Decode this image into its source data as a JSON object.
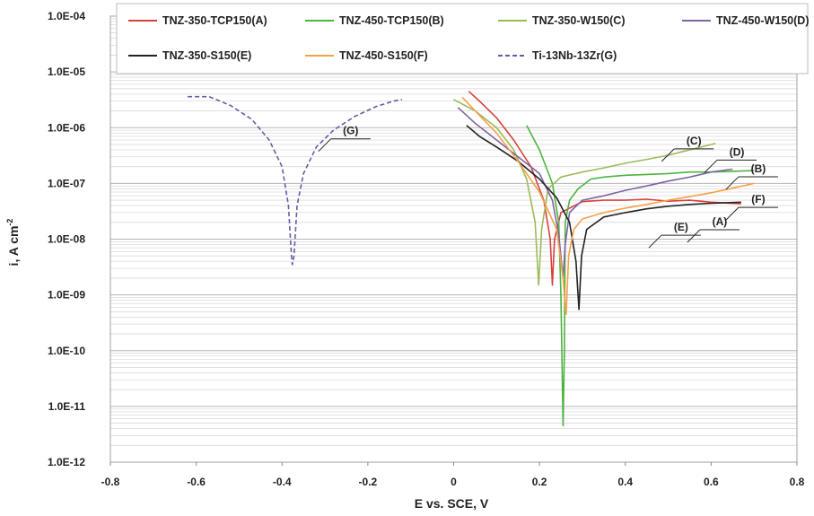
{
  "chart_data": {
    "type": "line",
    "title": "",
    "xlabel": "E vs. SCE, V",
    "ylabel": "i, A cm",
    "ylabel_sup": "-2",
    "xlim": [
      -0.8,
      0.8
    ],
    "ylim_log10": [
      -12,
      -4
    ],
    "y_scale": "log",
    "x_ticks": [
      "-0.8",
      "-0.6",
      "-0.4",
      "-0.2",
      "0",
      "0.2",
      "0.4",
      "0.6",
      "0.8"
    ],
    "x_tick_values": [
      -0.8,
      -0.6,
      -0.4,
      -0.2,
      0,
      0.2,
      0.4,
      0.6,
      0.8
    ],
    "y_ticks": [
      "1.0E-12",
      "1.0E-11",
      "1.0E-10",
      "1.0E-09",
      "1.0E-08",
      "1.0E-07",
      "1.0E-06",
      "1.0E-05",
      "1.0E-04"
    ],
    "y_tick_exps": [
      -12,
      -11,
      -10,
      -9,
      -8,
      -7,
      -6,
      -5,
      -4
    ],
    "grid": "horizontal minor and major",
    "legend_position": "top",
    "series": [
      {
        "name": "TNZ-350-TCP150",
        "tag": "(A)",
        "color": "#d9413b",
        "dash": false,
        "points": [
          [
            0.035,
            4.5e-06
          ],
          [
            0.06,
            3e-06
          ],
          [
            0.1,
            1.5e-06
          ],
          [
            0.14,
            6e-07
          ],
          [
            0.18,
            2e-07
          ],
          [
            0.21,
            5e-08
          ],
          [
            0.225,
            1e-08
          ],
          [
            0.23,
            1.5e-09
          ],
          [
            0.235,
            1e-08
          ],
          [
            0.25,
            3e-08
          ],
          [
            0.3,
            4.7e-08
          ],
          [
            0.35,
            5e-08
          ],
          [
            0.4,
            5e-08
          ],
          [
            0.45,
            5.2e-08
          ],
          [
            0.5,
            4.8e-08
          ],
          [
            0.55,
            5e-08
          ],
          [
            0.6,
            4.6e-08
          ],
          [
            0.67,
            4.3e-08
          ]
        ]
      },
      {
        "name": "TNZ-450-TCP150",
        "tag": "(B)",
        "color": "#4db342",
        "dash": false,
        "points": [
          [
            0.17,
            1.1e-06
          ],
          [
            0.2,
            4e-07
          ],
          [
            0.23,
            1e-07
          ],
          [
            0.245,
            2e-08
          ],
          [
            0.25,
            1e-09
          ],
          [
            0.255,
            4.5e-12
          ],
          [
            0.258,
            1e-10
          ],
          [
            0.26,
            2e-08
          ],
          [
            0.27,
            5e-08
          ],
          [
            0.29,
            8e-08
          ],
          [
            0.32,
            1.2e-07
          ],
          [
            0.35,
            1.3e-07
          ],
          [
            0.4,
            1.4e-07
          ],
          [
            0.45,
            1.45e-07
          ],
          [
            0.5,
            1.5e-07
          ],
          [
            0.55,
            1.6e-07
          ],
          [
            0.6,
            1.6e-07
          ],
          [
            0.65,
            1.65e-07
          ],
          [
            0.7,
            1.7e-07
          ]
        ]
      },
      {
        "name": "TNZ-350-W150",
        "tag": "(C)",
        "color": "#9bbb59",
        "dash": false,
        "points": [
          [
            0.0,
            3.2e-06
          ],
          [
            0.05,
            2e-06
          ],
          [
            0.1,
            1e-06
          ],
          [
            0.14,
            4e-07
          ],
          [
            0.17,
            1.2e-07
          ],
          [
            0.19,
            2e-08
          ],
          [
            0.198,
            1.5e-09
          ],
          [
            0.205,
            1.5e-08
          ],
          [
            0.22,
            8e-08
          ],
          [
            0.25,
            1.3e-07
          ],
          [
            0.3,
            1.6e-07
          ],
          [
            0.35,
            1.9e-07
          ],
          [
            0.4,
            2.3e-07
          ],
          [
            0.45,
            2.7e-07
          ],
          [
            0.5,
            3.2e-07
          ],
          [
            0.55,
            4e-07
          ],
          [
            0.6,
            5e-07
          ],
          [
            0.61,
            5.2e-07
          ]
        ]
      },
      {
        "name": "TNZ-450-W150",
        "tag": "(D)",
        "color": "#8064a2",
        "dash": false,
        "points": [
          [
            0.01,
            2.3e-06
          ],
          [
            0.05,
            1.2e-06
          ],
          [
            0.1,
            6e-07
          ],
          [
            0.15,
            3e-07
          ],
          [
            0.2,
            1.5e-07
          ],
          [
            0.23,
            5e-08
          ],
          [
            0.245,
            1.2e-08
          ],
          [
            0.255,
            2e-09
          ],
          [
            0.26,
            8e-09
          ],
          [
            0.27,
            3e-08
          ],
          [
            0.3,
            5e-08
          ],
          [
            0.35,
            6e-08
          ],
          [
            0.4,
            7.5e-08
          ],
          [
            0.45,
            9e-08
          ],
          [
            0.5,
            1.1e-07
          ],
          [
            0.55,
            1.3e-07
          ],
          [
            0.6,
            1.6e-07
          ],
          [
            0.65,
            1.8e-07
          ]
        ]
      },
      {
        "name": "TNZ-350-S150",
        "tag": "(E)",
        "color": "#222222",
        "dash": false,
        "points": [
          [
            0.03,
            1.1e-06
          ],
          [
            0.06,
            7e-07
          ],
          [
            0.1,
            4.5e-07
          ],
          [
            0.15,
            2.5e-07
          ],
          [
            0.2,
            1.2e-07
          ],
          [
            0.24,
            5.5e-08
          ],
          [
            0.27,
            2e-08
          ],
          [
            0.285,
            4e-09
          ],
          [
            0.292,
            5.5e-10
          ],
          [
            0.298,
            5e-09
          ],
          [
            0.31,
            1.5e-08
          ],
          [
            0.35,
            2.5e-08
          ],
          [
            0.4,
            3e-08
          ],
          [
            0.45,
            3.5e-08
          ],
          [
            0.5,
            3.9e-08
          ],
          [
            0.55,
            4.2e-08
          ],
          [
            0.6,
            4.4e-08
          ],
          [
            0.67,
            4.6e-08
          ]
        ]
      },
      {
        "name": "TNZ-450-S150",
        "tag": "(F)",
        "color": "#f5a04a",
        "dash": false,
        "points": [
          [
            0.02,
            3.5e-06
          ],
          [
            0.05,
            2e-06
          ],
          [
            0.1,
            8e-07
          ],
          [
            0.15,
            2.5e-07
          ],
          [
            0.2,
            7e-08
          ],
          [
            0.24,
            1.5e-08
          ],
          [
            0.255,
            2e-09
          ],
          [
            0.262,
            4.5e-10
          ],
          [
            0.268,
            5e-09
          ],
          [
            0.28,
            1.5e-08
          ],
          [
            0.3,
            2.3e-08
          ],
          [
            0.35,
            3e-08
          ],
          [
            0.4,
            3.6e-08
          ],
          [
            0.45,
            4.2e-08
          ],
          [
            0.5,
            5e-08
          ],
          [
            0.55,
            5.8e-08
          ],
          [
            0.6,
            6.8e-08
          ],
          [
            0.65,
            8.2e-08
          ],
          [
            0.7,
            1e-07
          ]
        ]
      },
      {
        "name": "Ti-13Nb-13Zr",
        "tag": "(G)",
        "color": "#6a5aa8",
        "dash": true,
        "points": [
          [
            -0.62,
            3.6e-06
          ],
          [
            -0.57,
            3.6e-06
          ],
          [
            -0.52,
            2.5e-06
          ],
          [
            -0.47,
            1.4e-06
          ],
          [
            -0.43,
            6e-07
          ],
          [
            -0.4,
            2e-07
          ],
          [
            -0.385,
            4e-08
          ],
          [
            -0.378,
            5e-09
          ],
          [
            -0.376,
            3.5e-09
          ],
          [
            -0.372,
            5e-09
          ],
          [
            -0.365,
            4e-08
          ],
          [
            -0.35,
            1.5e-07
          ],
          [
            -0.32,
            4.5e-07
          ],
          [
            -0.28,
            9e-07
          ],
          [
            -0.23,
            1.6e-06
          ],
          [
            -0.18,
            2.4e-06
          ],
          [
            -0.14,
            3e-06
          ],
          [
            -0.12,
            3.2e-06
          ]
        ]
      }
    ],
    "annotations": [
      {
        "label": "(G)",
        "x": -0.24,
        "y_exp": -6.12
      },
      {
        "label": "(C)",
        "x": 0.56,
        "y_exp": -6.3
      },
      {
        "label": "(D)",
        "x": 0.66,
        "y_exp": -6.5
      },
      {
        "label": "(B)",
        "x": 0.71,
        "y_exp": -6.8
      },
      {
        "label": "(F)",
        "x": 0.71,
        "y_exp": -7.35
      },
      {
        "label": "(A)",
        "x": 0.62,
        "y_exp": -7.75
      },
      {
        "label": "(E)",
        "x": 0.53,
        "y_exp": -7.85
      }
    ]
  }
}
